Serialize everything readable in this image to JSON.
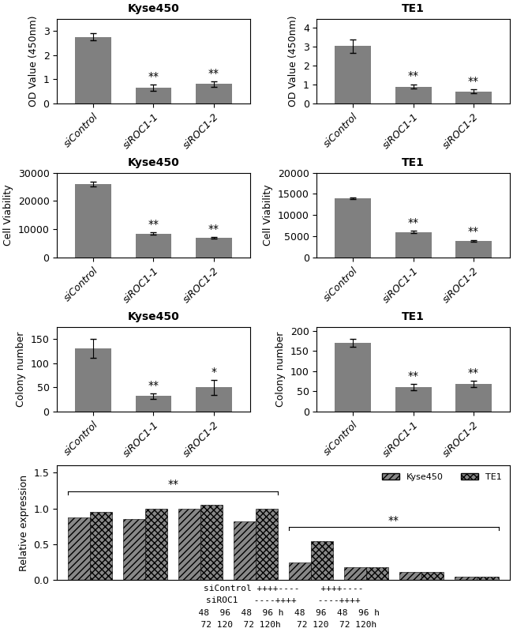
{
  "chart_data": [
    {
      "type": "bar",
      "title": "Kyse450",
      "ylabel": "OD Value (450nm)",
      "categories": [
        "siControl",
        "siROC1-1",
        "siROC1-2"
      ],
      "values": [
        2.75,
        0.65,
        0.8
      ],
      "errors": [
        0.15,
        0.12,
        0.1
      ],
      "color": "#808080",
      "ylim": [
        0,
        3.5
      ],
      "yticks": [
        0,
        1,
        2,
        3
      ],
      "annotations": [
        {
          "category": "siROC1-1",
          "text": "**"
        },
        {
          "category": "siROC1-2",
          "text": "**"
        }
      ]
    },
    {
      "type": "bar",
      "title": "TE1",
      "ylabel": "OD Value (450nm)",
      "categories": [
        "siControl",
        "siROC1-1",
        "siROC1-2"
      ],
      "values": [
        3.05,
        0.9,
        0.65
      ],
      "errors": [
        0.35,
        0.12,
        0.1
      ],
      "color": "#808080",
      "ylim": [
        0,
        4.5
      ],
      "yticks": [
        0,
        1,
        2,
        3,
        4
      ],
      "annotations": [
        {
          "category": "siROC1-1",
          "text": "**"
        },
        {
          "category": "siROC1-2",
          "text": "**"
        }
      ]
    },
    {
      "type": "bar",
      "title": "Kyse450",
      "ylabel": "Cell Viability",
      "categories": [
        "siControl",
        "siROC1-1",
        "siROC1-2"
      ],
      "values": [
        26000,
        8500,
        7000
      ],
      "errors": [
        800,
        400,
        200
      ],
      "color": "#808080",
      "ylim": [
        0,
        30000
      ],
      "yticks": [
        0,
        10000,
        20000,
        30000
      ],
      "annotations": [
        {
          "category": "siROC1-1",
          "text": "**"
        },
        {
          "category": "siROC1-2",
          "text": "**"
        }
      ]
    },
    {
      "type": "bar",
      "title": "TE1",
      "ylabel": "Cell Viability",
      "categories": [
        "siControl",
        "siROC1-1",
        "siROC1-2"
      ],
      "values": [
        14000,
        6000,
        4000
      ],
      "errors": [
        200,
        300,
        200
      ],
      "color": "#808080",
      "ylim": [
        0,
        20000
      ],
      "yticks": [
        0,
        5000,
        10000,
        15000,
        20000
      ],
      "annotations": [
        {
          "category": "siROC1-1",
          "text": "**"
        },
        {
          "category": "siROC1-2",
          "text": "**"
        }
      ]
    },
    {
      "type": "bar",
      "title": "Kyse450",
      "ylabel": "Colony number",
      "categories": [
        "siControl",
        "siROC1-1",
        "siROC1-2"
      ],
      "values": [
        130,
        32,
        50
      ],
      "errors": [
        20,
        5,
        15
      ],
      "color": "#808080",
      "ylim": [
        0,
        175
      ],
      "yticks": [
        0,
        50,
        100,
        150
      ],
      "annotations": [
        {
          "category": "siROC1-1",
          "text": "**"
        },
        {
          "category": "siROC1-2",
          "text": "*"
        }
      ]
    },
    {
      "type": "bar",
      "title": "TE1",
      "ylabel": "Colony number",
      "categories": [
        "siControl",
        "siROC1-1",
        "siROC1-2"
      ],
      "values": [
        170,
        60,
        68
      ],
      "errors": [
        10,
        8,
        8
      ],
      "color": "#808080",
      "ylim": [
        0,
        210
      ],
      "yticks": [
        0,
        50,
        100,
        150,
        200
      ],
      "annotations": [
        {
          "category": "siROC1-1",
          "text": "**"
        },
        {
          "category": "siROC1-2",
          "text": "**"
        }
      ]
    },
    {
      "type": "bar",
      "ylabel": "Relative expression",
      "categories": [
        null,
        null,
        null,
        null,
        null,
        null,
        null,
        null
      ],
      "series": [
        {
          "name": "Kyse450",
          "color": "#888888",
          "values": [
            0.87,
            0.85,
            1.0,
            0.82,
            0.25,
            0.18,
            0.12,
            0.05
          ]
        },
        {
          "name": "TE1",
          "color": "#888888",
          "values": [
            0.95,
            1.0,
            1.05,
            1.0,
            0.55,
            0.18,
            0.12,
            0.05
          ]
        }
      ],
      "ylim": [
        0,
        1.6
      ],
      "yticks": [
        0.0,
        0.5,
        1.0,
        1.5
      ],
      "legend": "upper right",
      "tick_labels": "y",
      "annotations": [
        {
          "text": "**",
          "from": 0,
          "to": 3
        },
        {
          "text": "**",
          "from": 4,
          "to": 7
        }
      ],
      "x_annotations": [
        "siControl ++++----    ++++----",
        "siROC1   ----++++    ----++++",
        "  48  96  48  96 h  48  96  48  96 h",
        "  72 120  72 120h   72 120  72 120h"
      ]
    }
  ]
}
